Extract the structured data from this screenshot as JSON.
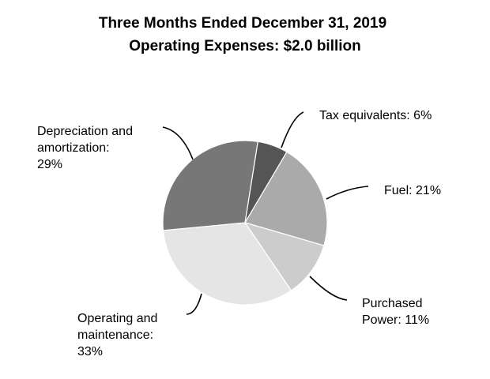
{
  "chart_data": {
    "type": "pie",
    "title": "Three Months Ended December 31, 2019",
    "subtitle": "Operating Expenses: $2.0 billion",
    "slices": [
      {
        "label_lines": [
          "Tax equivalents: 6%"
        ],
        "value": 6,
        "color": "#555555"
      },
      {
        "label_lines": [
          "Fuel: 21%"
        ],
        "value": 21,
        "color": "#aaaaaa"
      },
      {
        "label_lines": [
          "Purchased",
          "Power: 11%"
        ],
        "value": 11,
        "color": "#cccccc"
      },
      {
        "label_lines": [
          "Operating and",
          "maintenance:",
          "33%"
        ],
        "value": 33,
        "color": "#e5e5e5"
      },
      {
        "label_lines": [
          "Depreciation and",
          "amortization:",
          "29%"
        ],
        "value": 29,
        "color": "#777777"
      }
    ]
  }
}
